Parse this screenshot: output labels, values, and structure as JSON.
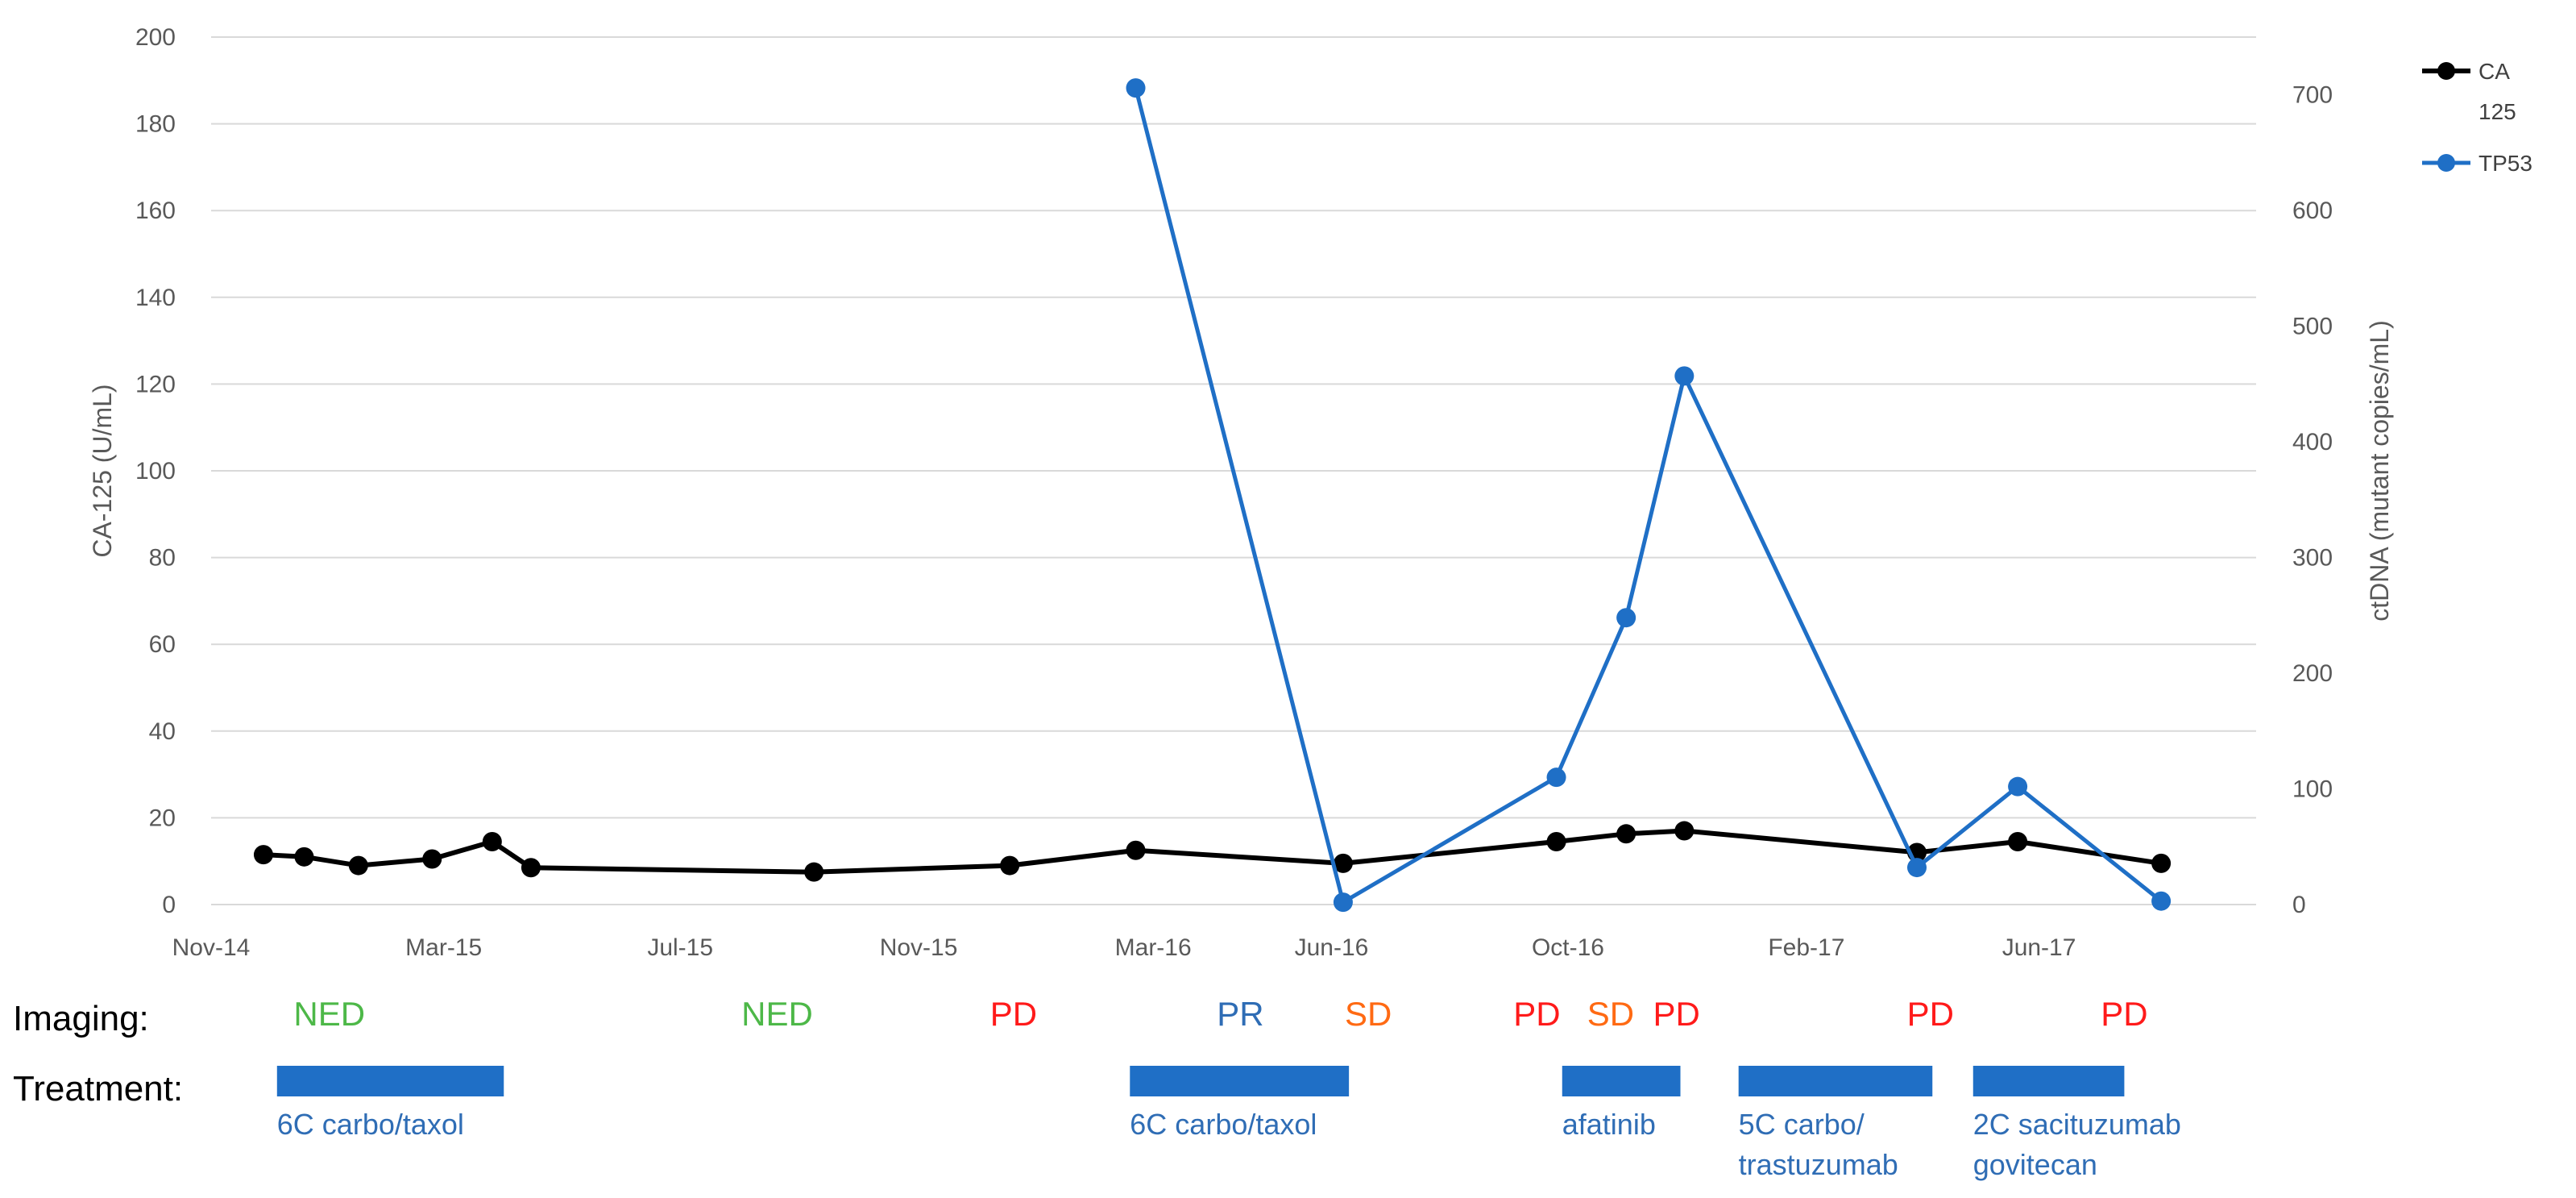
{
  "chart_data": {
    "type": "line",
    "xlabel": "",
    "ylabel": "CA-125 (U/mL)",
    "y2label": "ctDNA (mutant copies/mL)",
    "ylim": [
      0,
      200
    ],
    "y2lim": [
      0,
      750
    ],
    "yticks": [
      "0",
      "20",
      "40",
      "60",
      "80",
      "100",
      "120",
      "140",
      "160",
      "180",
      "200"
    ],
    "y2ticks": [
      "0",
      "100",
      "200",
      "300",
      "400",
      "500",
      "600",
      "700"
    ],
    "xticks": [
      {
        "label": "Nov-14",
        "date": "2014-11-01"
      },
      {
        "label": "Mar-15",
        "date": "2015-03-01"
      },
      {
        "label": "Jul-15",
        "date": "2015-07-01"
      },
      {
        "label": "Nov-15",
        "date": "2015-11-01"
      },
      {
        "label": "Mar-16",
        "date": "2016-03-01"
      },
      {
        "label": "Jun-16",
        "date": "2016-06-01"
      },
      {
        "label": "Oct-16",
        "date": "2016-10-01"
      },
      {
        "label": "Feb-17",
        "date": "2017-02-01"
      },
      {
        "label": "Jun-17",
        "date": "2017-06-01"
      }
    ],
    "xlim": [
      "2014-11-01",
      "2017-09-21"
    ],
    "grid": true,
    "legend_position": "right",
    "series": [
      {
        "name": "CA 125",
        "name_lines": [
          "CA",
          "125"
        ],
        "axis": "left",
        "color": "#000000",
        "points": [
          {
            "date": "2014-11-28",
            "value": 11.5
          },
          {
            "date": "2014-12-19",
            "value": 11
          },
          {
            "date": "2015-01-16",
            "value": 9
          },
          {
            "date": "2015-02-23",
            "value": 10.5
          },
          {
            "date": "2015-03-26",
            "value": 14.5
          },
          {
            "date": "2015-04-15",
            "value": 8.5
          },
          {
            "date": "2015-09-08",
            "value": 7.5
          },
          {
            "date": "2015-12-18",
            "value": 9
          },
          {
            "date": "2016-02-21",
            "value": 12.5
          },
          {
            "date": "2016-06-07",
            "value": 9.5
          },
          {
            "date": "2016-09-25",
            "value": 14.5
          },
          {
            "date": "2016-10-31",
            "value": 16.3
          },
          {
            "date": "2016-11-30",
            "value": 17
          },
          {
            "date": "2017-03-30",
            "value": 12
          },
          {
            "date": "2017-05-21",
            "value": 14.5
          },
          {
            "date": "2017-08-03",
            "value": 9.5
          }
        ]
      },
      {
        "name": "TP53",
        "axis": "right",
        "color": "#1f6fc6",
        "points": [
          {
            "date": "2016-02-21",
            "value": 706
          },
          {
            "date": "2016-06-07",
            "value": 2
          },
          {
            "date": "2016-09-25",
            "value": 110
          },
          {
            "date": "2016-10-31",
            "value": 248
          },
          {
            "date": "2016-11-30",
            "value": 457
          },
          {
            "date": "2017-03-30",
            "value": 32
          },
          {
            "date": "2017-05-21",
            "value": 102
          },
          {
            "date": "2017-08-03",
            "value": 3
          }
        ]
      }
    ],
    "imaging": {
      "label": "Imaging:",
      "items": [
        {
          "text": "NED",
          "date": "2015-01-01",
          "color": "#4db848"
        },
        {
          "text": "NED",
          "date": "2015-08-20",
          "color": "#4db848"
        },
        {
          "text": "PD",
          "date": "2015-12-20",
          "color": "#ff1a1a"
        },
        {
          "text": "PR",
          "date": "2016-04-15",
          "color": "#2f6db5"
        },
        {
          "text": "SD",
          "date": "2016-06-20",
          "color": "#ff6a13"
        },
        {
          "text": "PD",
          "date": "2016-09-15",
          "color": "#ff1a1a"
        },
        {
          "text": "SD",
          "date": "2016-10-23",
          "color": "#ff6a13"
        },
        {
          "text": "PD",
          "date": "2016-11-26",
          "color": "#ff1a1a"
        },
        {
          "text": "PD",
          "date": "2017-04-06",
          "color": "#ff1a1a"
        },
        {
          "text": "PD",
          "date": "2017-07-15",
          "color": "#ff1a1a"
        }
      ]
    },
    "treatment": {
      "label": "Treatment:",
      "color": "#1f6fc6",
      "items": [
        {
          "start": "2014-12-05",
          "end": "2015-04-01",
          "lines": [
            "6C carbo/taxol"
          ]
        },
        {
          "start": "2016-02-18",
          "end": "2016-06-10",
          "lines": [
            "6C carbo/taxol"
          ]
        },
        {
          "start": "2016-09-28",
          "end": "2016-11-28",
          "lines": [
            "afatinib"
          ]
        },
        {
          "start": "2016-12-28",
          "end": "2017-04-07",
          "lines": [
            "5C carbo/",
            "trastuzumab"
          ]
        },
        {
          "start": "2017-04-28",
          "end": "2017-07-15",
          "lines": [
            "2C sacituzumab",
            "govitecan"
          ]
        }
      ]
    }
  }
}
